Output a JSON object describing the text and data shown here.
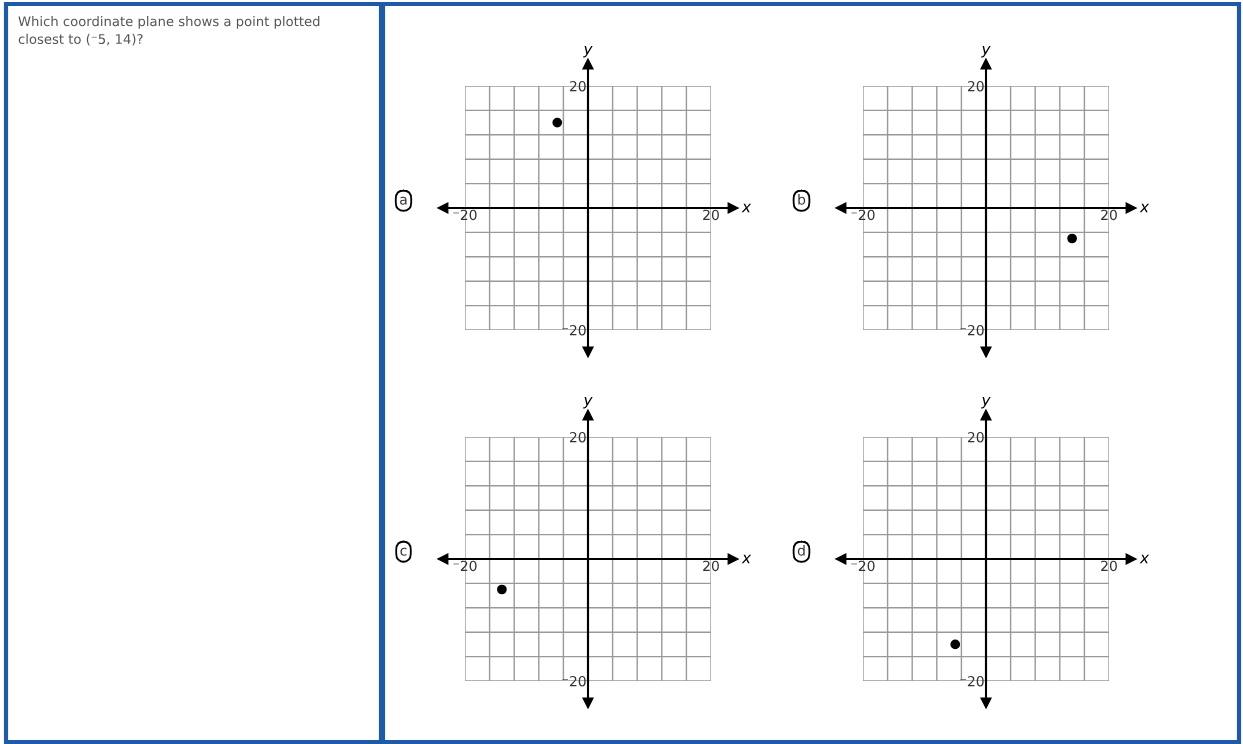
{
  "chart_data": [
    {
      "type": "other",
      "annotations": [
        "Which coordinate plane shows a point plotted closest to (⁻5, 14)?"
      ]
    },
    {
      "type": "scatter",
      "title": "a",
      "xlabel": "x",
      "ylabel": "y",
      "marker": "circle",
      "grid": true,
      "series": [
        {
          "color": "#000000",
          "x": [
            -5
          ],
          "values": [
            14
          ]
        }
      ],
      "xlim": [
        -20,
        20
      ],
      "ylim": [
        -20,
        20
      ],
      "xticks": [
        {
          "value": -20,
          "label": "⁻20"
        },
        {
          "value": -16,
          "label": null
        },
        {
          "value": -12,
          "label": null
        },
        {
          "value": -8,
          "label": null
        },
        {
          "value": -4,
          "label": null
        },
        {
          "value": 4,
          "label": null
        },
        {
          "value": 8,
          "label": null
        },
        {
          "value": 12,
          "label": null
        },
        {
          "value": 16,
          "label": null
        },
        20
      ],
      "yticks": [
        {
          "value": -20,
          "label": "⁻20"
        },
        {
          "value": -16,
          "label": null
        },
        {
          "value": -12,
          "label": null
        },
        {
          "value": -8,
          "label": null
        },
        {
          "value": -4,
          "label": null
        },
        {
          "value": 4,
          "label": null
        },
        {
          "value": 8,
          "label": null
        },
        {
          "value": 12,
          "label": null
        },
        {
          "value": 16,
          "label": null
        },
        20
      ]
    },
    {
      "type": "scatter",
      "title": "b",
      "xlabel": "x",
      "ylabel": "y",
      "marker": "circle",
      "grid": true,
      "series": [
        {
          "color": "#000000",
          "x": [
            14
          ],
          "values": [
            -5
          ]
        }
      ],
      "xlim": [
        -20,
        20
      ],
      "ylim": [
        -20,
        20
      ],
      "xticks": [
        {
          "value": -20,
          "label": "⁻20"
        },
        {
          "value": -16,
          "label": null
        },
        {
          "value": -12,
          "label": null
        },
        {
          "value": -8,
          "label": null
        },
        {
          "value": -4,
          "label": null
        },
        {
          "value": 4,
          "label": null
        },
        {
          "value": 8,
          "label": null
        },
        {
          "value": 12,
          "label": null
        },
        {
          "value": 16,
          "label": null
        },
        20
      ],
      "yticks": [
        {
          "value": -20,
          "label": "⁻20"
        },
        {
          "value": -16,
          "label": null
        },
        {
          "value": -12,
          "label": null
        },
        {
          "value": -8,
          "label": null
        },
        {
          "value": -4,
          "label": null
        },
        {
          "value": 4,
          "label": null
        },
        {
          "value": 8,
          "label": null
        },
        {
          "value": 12,
          "label": null
        },
        {
          "value": 16,
          "label": null
        },
        20
      ]
    },
    {
      "type": "scatter",
      "title": "c",
      "xlabel": "x",
      "ylabel": "y",
      "marker": "circle",
      "grid": true,
      "series": [
        {
          "color": "#000000",
          "x": [
            -14
          ],
          "values": [
            -5
          ]
        }
      ],
      "xlim": [
        -20,
        20
      ],
      "ylim": [
        -20,
        20
      ],
      "xticks": [
        {
          "value": -20,
          "label": "⁻20"
        },
        {
          "value": -16,
          "label": null
        },
        {
          "value": -12,
          "label": null
        },
        {
          "value": -8,
          "label": null
        },
        {
          "value": -4,
          "label": null
        },
        {
          "value": 4,
          "label": null
        },
        {
          "value": 8,
          "label": null
        },
        {
          "value": 12,
          "label": null
        },
        {
          "value": 16,
          "label": null
        },
        20
      ],
      "yticks": [
        {
          "value": -20,
          "label": "⁻20"
        },
        {
          "value": -16,
          "label": null
        },
        {
          "value": -12,
          "label": null
        },
        {
          "value": -8,
          "label": null
        },
        {
          "value": -4,
          "label": null
        },
        {
          "value": 4,
          "label": null
        },
        {
          "value": 8,
          "label": null
        },
        {
          "value": 12,
          "label": null
        },
        {
          "value": 16,
          "label": null
        },
        20
      ]
    },
    {
      "type": "scatter",
      "title": "d",
      "xlabel": "x",
      "ylabel": "y",
      "marker": "circle",
      "grid": true,
      "series": [
        {
          "color": "#000000",
          "x": [
            -5
          ],
          "values": [
            -14
          ]
        }
      ],
      "xlim": [
        -20,
        20
      ],
      "ylim": [
        -20,
        20
      ],
      "xticks": [
        {
          "value": -20,
          "label": "⁻20"
        },
        {
          "value": -16,
          "label": null
        },
        {
          "value": -12,
          "label": null
        },
        {
          "value": -8,
          "label": null
        },
        {
          "value": -4,
          "label": null
        },
        {
          "value": 4,
          "label": null
        },
        {
          "value": 8,
          "label": null
        },
        {
          "value": 12,
          "label": null
        },
        {
          "value": 16,
          "label": null
        },
        20
      ],
      "yticks": [
        {
          "value": -20,
          "label": "⁻20"
        },
        {
          "value": -16,
          "label": null
        },
        {
          "value": -12,
          "label": null
        },
        {
          "value": -8,
          "label": null
        },
        {
          "value": -4,
          "label": null
        },
        {
          "value": 4,
          "label": null
        },
        {
          "value": 8,
          "label": null
        },
        {
          "value": 12,
          "label": null
        },
        {
          "value": 16,
          "label": null
        },
        20
      ]
    }
  ]
}
